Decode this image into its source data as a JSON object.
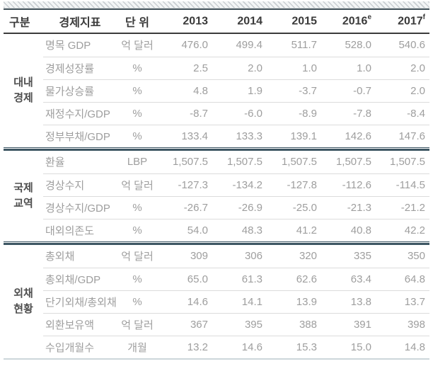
{
  "table": {
    "columns": [
      {
        "key": "category",
        "label": "구분",
        "sup": ""
      },
      {
        "key": "indicator",
        "label": "경제지표",
        "sup": ""
      },
      {
        "key": "unit",
        "label": "단 위",
        "sup": ""
      },
      {
        "key": "y2013",
        "label": "2013",
        "sup": ""
      },
      {
        "key": "y2014",
        "label": "2014",
        "sup": ""
      },
      {
        "key": "y2015",
        "label": "2015",
        "sup": ""
      },
      {
        "key": "y2016",
        "label": "2016",
        "sup": "e"
      },
      {
        "key": "y2017",
        "label": "2017",
        "sup": "f"
      }
    ],
    "groups": [
      {
        "label": "대내경제",
        "label_lines": [
          "대내",
          "경제"
        ],
        "rows": [
          {
            "indicator": "명목 GDP",
            "unit": "억 달러",
            "values": [
              "476.0",
              "499.4",
              "511.7",
              "528.0",
              "540.6"
            ]
          },
          {
            "indicator": "경제성장률",
            "unit": "%",
            "values": [
              "2.5",
              "2.0",
              "1.0",
              "1.0",
              "2.0"
            ]
          },
          {
            "indicator": "물가상승률",
            "unit": "%",
            "values": [
              "4.8",
              "1.9",
              "-3.7",
              "-0.7",
              "2.0"
            ]
          },
          {
            "indicator": "재정수지/GDP",
            "unit": "%",
            "values": [
              "-8.7",
              "-6.0",
              "-8.9",
              "-7.8",
              "-8.4"
            ]
          },
          {
            "indicator": "정부부채/GDP",
            "unit": "%",
            "values": [
              "133.4",
              "133.3",
              "139.1",
              "142.6",
              "147.6"
            ]
          }
        ]
      },
      {
        "label": "국제교역",
        "label_lines": [
          "국제",
          "교역"
        ],
        "rows": [
          {
            "indicator": "환율",
            "unit": "LBP",
            "values": [
              "1,507.5",
              "1,507.5",
              "1,507.5",
              "1,507.5",
              "1,507.5"
            ]
          },
          {
            "indicator": "경상수지",
            "unit": "억 달러",
            "values": [
              "-127.3",
              "-134.2",
              "-127.8",
              "-112.6",
              "-114.5"
            ]
          },
          {
            "indicator": "경상수지/GDP",
            "unit": "%",
            "values": [
              "-26.7",
              "-26.9",
              "-25.0",
              "-21.3",
              "-21.2"
            ]
          },
          {
            "indicator": "대외의존도",
            "unit": "%",
            "values": [
              "54.0",
              "48.3",
              "41.2",
              "40.8",
              "42.2"
            ]
          }
        ]
      },
      {
        "label": "외채현황",
        "label_lines": [
          "외채",
          "현황"
        ],
        "rows": [
          {
            "indicator": "총외채",
            "unit": "억 달러",
            "values": [
              "309",
              "306",
              "320",
              "335",
              "350"
            ]
          },
          {
            "indicator": "총외채/GDP",
            "unit": "%",
            "values": [
              "65.0",
              "61.3",
              "62.6",
              "63.4",
              "64.8"
            ]
          },
          {
            "indicator": "단기외채/총외채",
            "unit": "%",
            "values": [
              "14.6",
              "14.1",
              "13.9",
              "13.8",
              "13.7"
            ]
          },
          {
            "indicator": "외환보유액",
            "unit": "억 달러",
            "values": [
              "367",
              "395",
              "388",
              "391",
              "398"
            ]
          },
          {
            "indicator": "수입개월수",
            "unit": "개월",
            "values": [
              "13.2",
              "14.6",
              "15.3",
              "15.0",
              "14.8"
            ]
          }
        ]
      }
    ],
    "colors": {
      "separator": "#3d5663",
      "header_line": "#3b3b3b",
      "top_line": "#47565e",
      "header_text": "#3a3a3a",
      "body_text": "#9e9e9e",
      "group_label_text": "#4f4f4f",
      "row_line": "#dcdcdc",
      "bottom_line": "#ccd6da"
    }
  }
}
